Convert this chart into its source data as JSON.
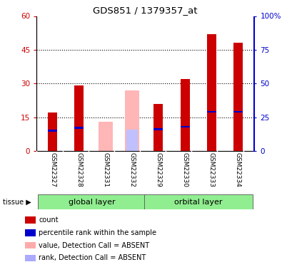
{
  "title": "GDS851 / 1379357_at",
  "samples": [
    "GSM22327",
    "GSM22328",
    "GSM22331",
    "GSM22332",
    "GSM22329",
    "GSM22330",
    "GSM22333",
    "GSM22334"
  ],
  "red_values": [
    17,
    29,
    null,
    null,
    21,
    32,
    52,
    48
  ],
  "blue_values": [
    15,
    17,
    null,
    null,
    16,
    18,
    29,
    29
  ],
  "pink_values": [
    null,
    null,
    13,
    27,
    null,
    null,
    null,
    null
  ],
  "lightblue_values": [
    null,
    null,
    null,
    16,
    null,
    null,
    null,
    null
  ],
  "ylim_left": [
    0,
    60
  ],
  "ylim_right": [
    0,
    100
  ],
  "yticks_left": [
    0,
    15,
    30,
    45,
    60
  ],
  "yticks_right": [
    0,
    25,
    50,
    75,
    100
  ],
  "ytick_labels_right": [
    "0",
    "25",
    "50",
    "75",
    "100%"
  ],
  "left_axis_color": "#cc0000",
  "right_axis_color": "#0000cc",
  "bar_width": 0.35,
  "pink_bar_width": 0.55,
  "bg_color": "#ffffff",
  "grid_color": "#000000",
  "grid_lines": [
    15,
    30,
    45
  ],
  "legend_items": [
    "count",
    "percentile rank within the sample",
    "value, Detection Call = ABSENT",
    "rank, Detection Call = ABSENT"
  ],
  "legend_colors": [
    "#cc0000",
    "#0000cc",
    "#ffaaaa",
    "#aaaaff"
  ],
  "group1_label": "global layer",
  "group2_label": "orbital layer",
  "tissue_label": "tissue",
  "group1_indices": [
    0,
    1,
    2,
    3
  ],
  "group2_indices": [
    4,
    5,
    6,
    7
  ]
}
